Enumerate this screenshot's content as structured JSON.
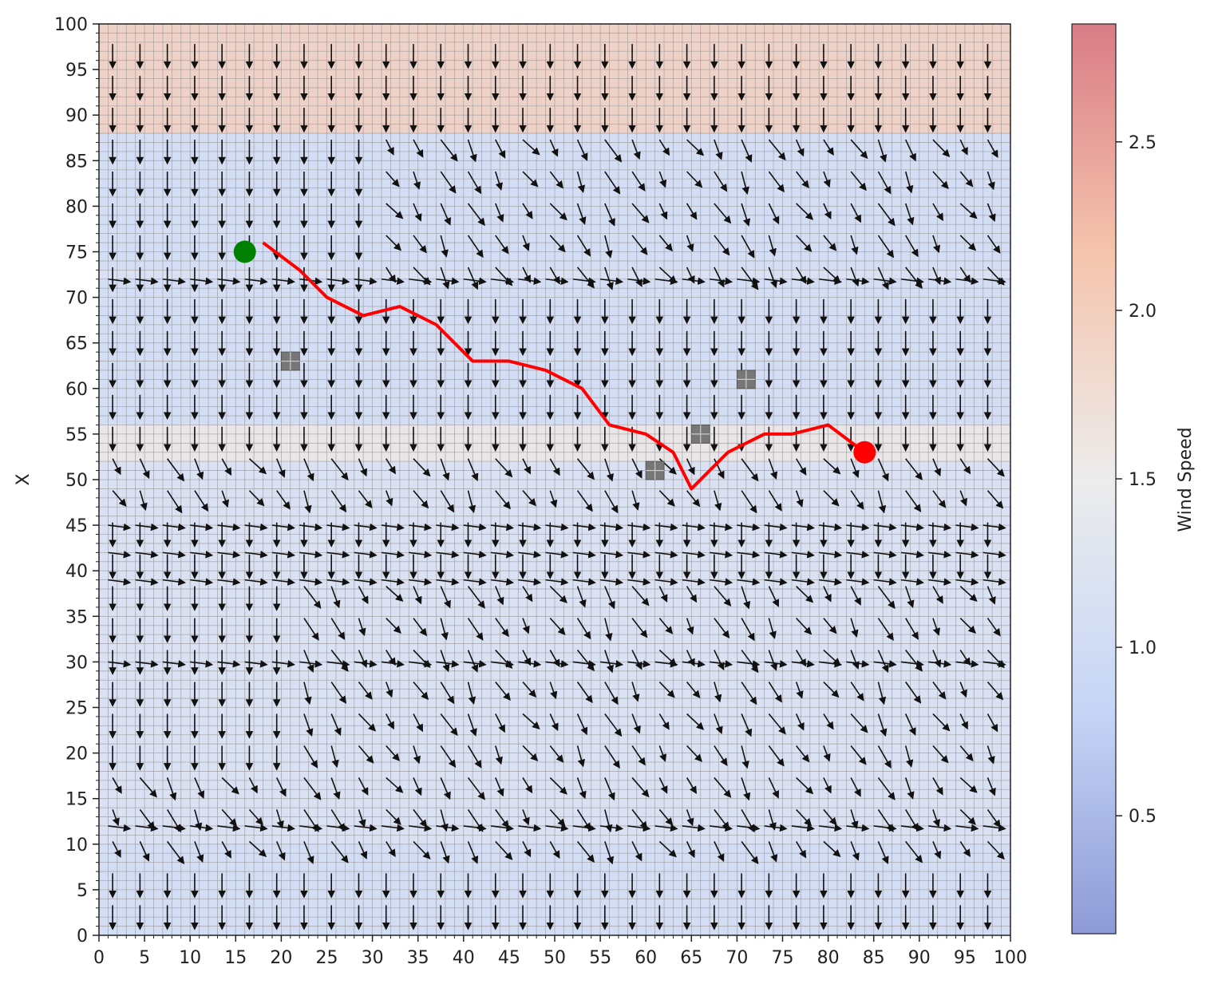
{
  "chart_data": {
    "type": "quiver",
    "title": "",
    "xlabel": "",
    "ylabel": "X",
    "xlim": [
      0,
      100
    ],
    "ylim": [
      0,
      100
    ],
    "xticks": [
      0,
      5,
      10,
      15,
      20,
      25,
      30,
      35,
      40,
      45,
      50,
      55,
      60,
      65,
      70,
      75,
      80,
      85,
      90,
      95,
      100
    ],
    "yticks": [
      0,
      5,
      10,
      15,
      20,
      25,
      30,
      35,
      40,
      45,
      50,
      55,
      60,
      65,
      70,
      75,
      80,
      85,
      90,
      95,
      100
    ],
    "grid": true,
    "grid_step": 1,
    "colorbar": {
      "label": "Wind Speed",
      "range": [
        0.15,
        2.85
      ],
      "ticks": [
        0.5,
        1.0,
        1.5,
        2.0,
        2.5
      ],
      "tick_labels": [
        "0.5",
        "1.0",
        "1.5",
        "2.0",
        "2.5"
      ],
      "colormap": "coolwarm",
      "colors": [
        "#8e9ad6",
        "#c7d6f7",
        "#ececec",
        "#f5c4ad",
        "#d97c86"
      ]
    },
    "wind_speed_bands": [
      {
        "y_range": [
          88,
          100
        ],
        "speed": 2.0
      },
      {
        "y_range": [
          73,
          88
        ],
        "speed": 1.0
      },
      {
        "y_range": [
          56,
          72
        ],
        "speed": 1.0
      },
      {
        "y_range": [
          52,
          56
        ],
        "speed": 1.6
      },
      {
        "y_range": [
          0,
          10
        ],
        "speed": 1.0
      }
    ],
    "path": {
      "color": "#ff0000",
      "x": [
        18,
        22,
        25,
        29,
        33,
        37,
        41,
        45,
        49,
        53,
        56,
        60,
        63,
        65,
        69,
        73,
        76,
        80,
        84
      ],
      "y": [
        76,
        73,
        70,
        68,
        69,
        67,
        63,
        63,
        62,
        60,
        56,
        55,
        53,
        49,
        53,
        55,
        55,
        56,
        53
      ]
    },
    "start": {
      "x": 16,
      "y": 75,
      "color": "#008000"
    },
    "goal": {
      "x": 84,
      "y": 53,
      "color": "#ff0000"
    },
    "obstacles": [
      {
        "x": 21,
        "y": 63
      },
      {
        "x": 66,
        "y": 55
      },
      {
        "x": 61,
        "y": 51
      },
      {
        "x": 71,
        "y": 61
      }
    ],
    "vector_field": {
      "default_direction": "down",
      "spacing_x": 3,
      "spacing_y": 3.5,
      "rightward_rows": [
        72,
        45,
        42,
        39,
        30,
        12
      ],
      "diagonal_zones": [
        {
          "x_range": [
            0,
            100
          ],
          "y_range": [
            45,
            52
          ]
        },
        {
          "x_range": [
            0,
            100
          ],
          "y_range": [
            8,
            16
          ]
        },
        {
          "x_range": [
            30,
            100
          ],
          "y_range": [
            72,
            86
          ]
        },
        {
          "x_range": [
            20,
            100
          ],
          "y_range": [
            18,
            40
          ]
        }
      ]
    }
  }
}
